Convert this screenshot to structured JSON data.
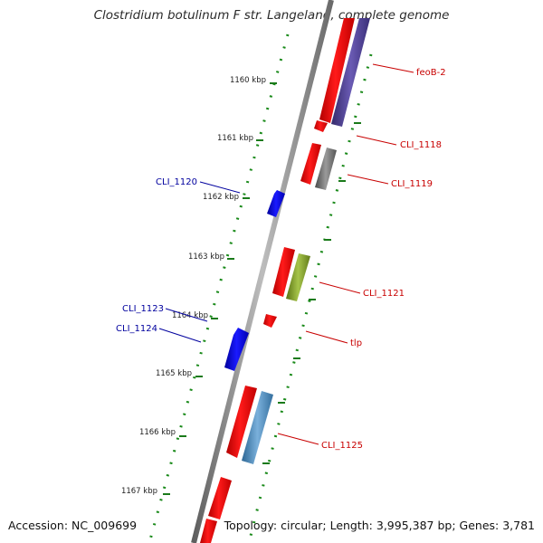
{
  "title": "Clostridium botulinum F str. Langeland, complete genome",
  "accession_text": "Accession: NC_009699",
  "summary_text": "Topology: circular; Length: 3,995,387 bp; Genes: 3,781",
  "colors": {
    "backbone": "#8c8c8c",
    "ticks": "#1a7a1a",
    "cds_forward": "#ff0000",
    "cds_reverse": "#0000ff",
    "forward_label": "#c80000",
    "reverse_label": "#00009e"
  },
  "tick_labels": [
    "1160 kbp",
    "1161 kbp",
    "1162 kbp",
    "1163 kbp",
    "1164 kbp",
    "1165 kbp",
    "1166 kbp",
    "1167 kbp"
  ],
  "gene_labels": {
    "feoB_2": "feoB-2",
    "cli_1118": "CLI_1118",
    "cli_1119": "CLI_1119",
    "cli_1120": "CLI_1120",
    "cli_1121": "CLI_1121",
    "cli_1123": "CLI_1123",
    "cli_1124": "CLI_1124",
    "tlp": "tlp",
    "cli_1125": "CLI_1125"
  },
  "feature_colors": {
    "feoB_2": "#4b3f8f",
    "cli_1119": "#6e6e6e",
    "cli_1121": "#7f9f2a",
    "cli_1125": "#4b86b8"
  }
}
